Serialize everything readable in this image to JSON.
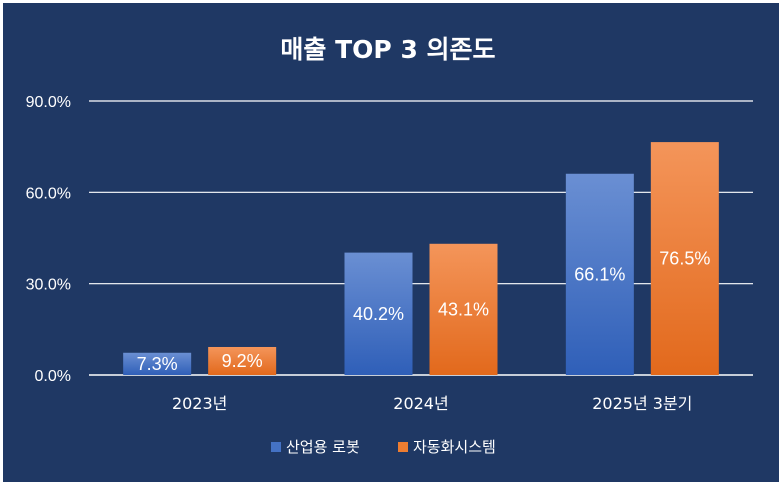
{
  "chart_data": {
    "type": "bar",
    "title": "매출 TOP 3 의존도",
    "categories": [
      "2023년",
      "2024년",
      "2025년 3분기"
    ],
    "series": [
      {
        "name": "산업용 로봇",
        "values": [
          7.3,
          40.2,
          66.1
        ],
        "labels": [
          "7.3%",
          "40.2%",
          "66.1%"
        ],
        "color": "#4472c4"
      },
      {
        "name": "자동화시스템",
        "values": [
          9.2,
          43.1,
          76.5
        ],
        "labels": [
          "9.2%",
          "43.1%",
          "76.5%"
        ],
        "color": "#ed7d31"
      }
    ],
    "yticks": [
      "0.0%",
      "30.0%",
      "60.0%",
      "90.0%"
    ],
    "ylim": [
      0,
      90
    ],
    "grid": true,
    "legend_position": "bottom",
    "background": "#1f3864"
  }
}
